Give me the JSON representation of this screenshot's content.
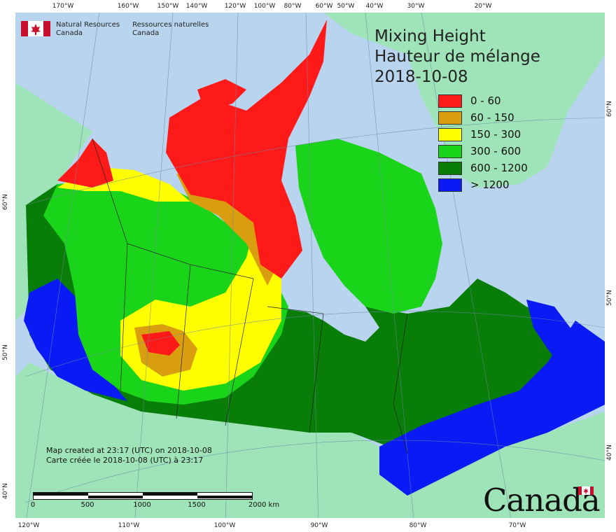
{
  "title": {
    "line1": "Mixing Height",
    "line2": "Hauteur de mélange",
    "line3": "2018-10-08"
  },
  "legend": {
    "items": [
      {
        "label": "0 - 60",
        "color": "#ff1a1a"
      },
      {
        "label": "60 - 150",
        "color": "#d99e0f"
      },
      {
        "label": "150 - 300",
        "color": "#ffff00"
      },
      {
        "label": "300 - 600",
        "color": "#19d419"
      },
      {
        "label": "600 - 1200",
        "color": "#087d08"
      },
      {
        "label": "> 1200",
        "color": "#0a1af5"
      }
    ]
  },
  "agency": {
    "en_line1": "Natural Resources",
    "en_line2": "Canada",
    "fr_line1": "Ressources naturelles",
    "fr_line2": "Canada"
  },
  "credit": {
    "line1": "Map created at 23:17 (UTC) on 2018-10-08",
    "line2": "Carte créée le 2018-10-08 (UTC) à 23:17"
  },
  "scale": {
    "labels": [
      "0",
      "500",
      "1000",
      "1500",
      "2000  km"
    ]
  },
  "graticule": {
    "top_labels": [
      "170°W",
      "160°W",
      "150°W",
      "140°W",
      "120°W",
      "100°W",
      "80°W",
      "60°W",
      "50°W",
      "40°W",
      "30°W",
      "20°W"
    ],
    "bottom_labels": [
      "120°W",
      "110°W",
      "100°W",
      "90°W",
      "80°W",
      "70°W"
    ],
    "left_labels": [
      "60°N",
      "50°N",
      "40°N"
    ],
    "right_labels": [
      "60°N",
      "50°N",
      "40°N"
    ]
  },
  "wordmark": "Canada",
  "colors": {
    "water": "#b8d4ee",
    "land_outside": "#9fe3b8"
  }
}
